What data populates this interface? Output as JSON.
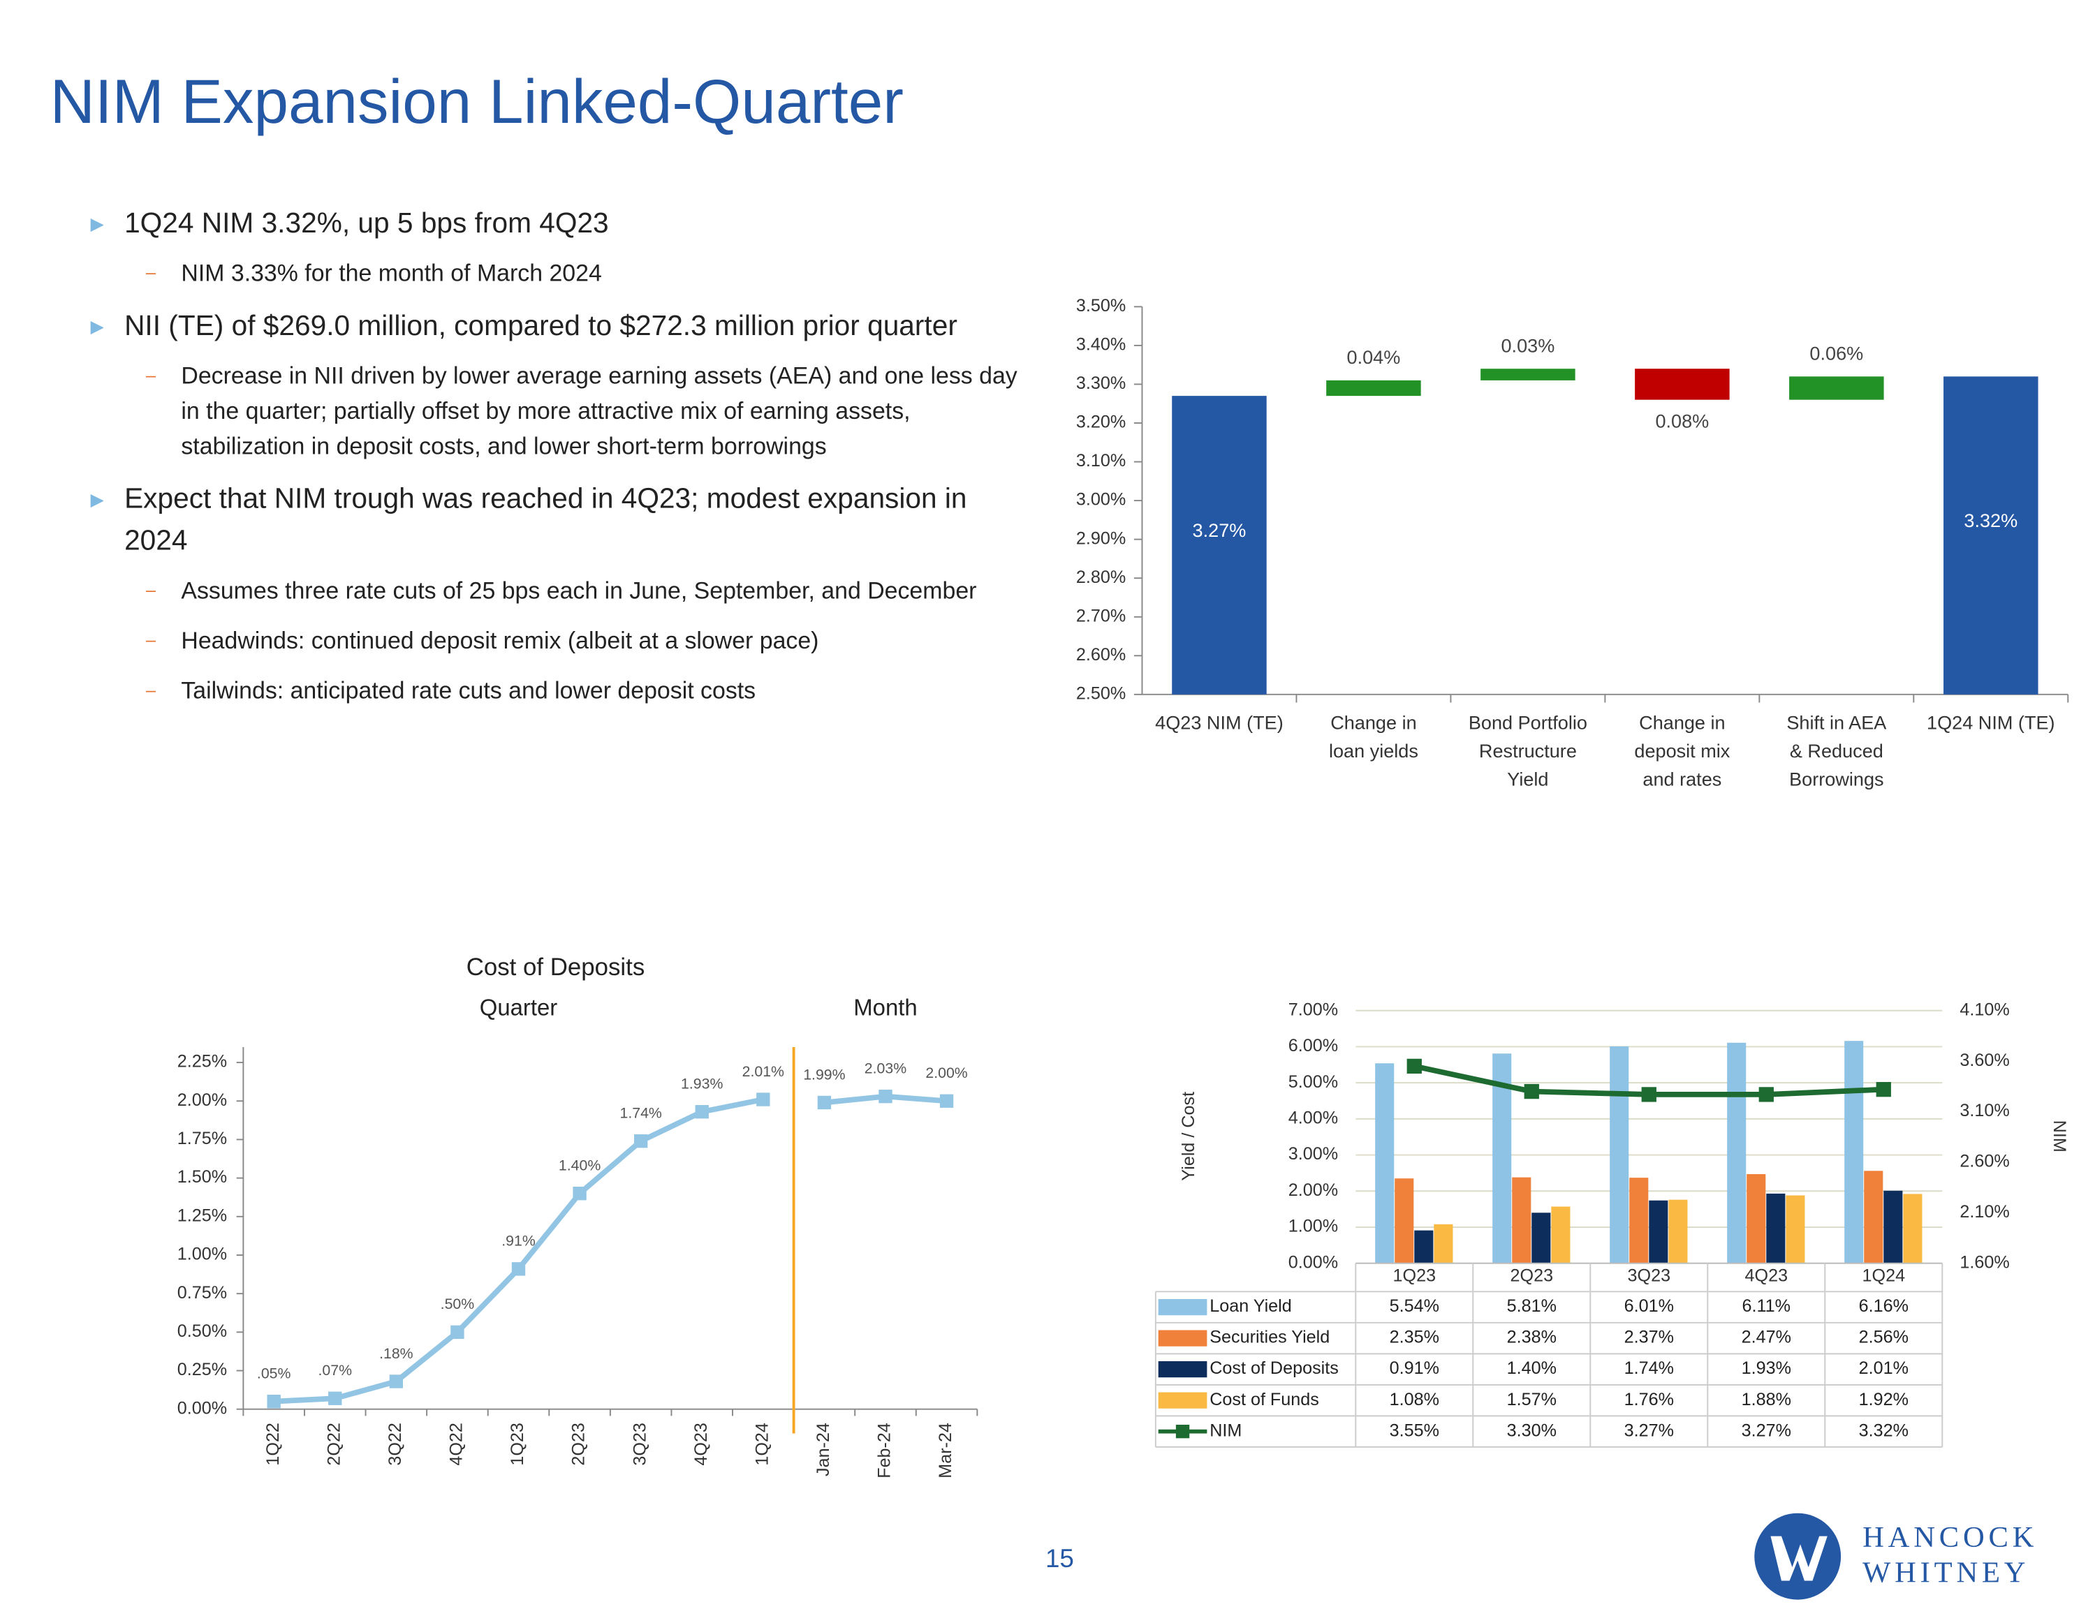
{
  "title": "NIM Expansion Linked-Quarter",
  "bullets": [
    {
      "text": "1Q24 NIM 3.32%, up 5 bps from 4Q23",
      "sub": [
        "NIM 3.33% for the month of March 2024"
      ]
    },
    {
      "text": "NII (TE) of $269.0 million, compared to $272.3 million prior quarter",
      "sub": [
        "Decrease in NII driven by lower average earning assets (AEA) and one less day in the quarter; partially offset by more attractive mix of earning assets, stabilization in deposit costs, and lower short-term borrowings"
      ]
    },
    {
      "text": "Expect that NIM trough was reached in 4Q23; modest expansion in 2024",
      "sub": [
        "Assumes three rate cuts of 25 bps each in June, September, and December",
        "Headwinds: continued deposit remix (albeit at a slower pace)",
        "Tailwinds: anticipated rate cuts and lower deposit costs"
      ]
    }
  ],
  "page_number": "15",
  "logo": [
    "HANCOCK",
    "WHITNEY"
  ],
  "chart_data": [
    {
      "type": "waterfall",
      "categories": [
        "4Q23 NIM (TE)",
        "Change in\nloan yields",
        "Bond Portfolio\nRestructure\nYield",
        "Change in\ndeposit mix\nand rates",
        "Shift in AEA\n& Reduced\nBorrowings",
        "1Q24 NIM (TE)"
      ],
      "values": [
        3.27,
        0.04,
        0.03,
        -0.08,
        0.06,
        3.32
      ],
      "value_labels": [
        "3.27%",
        "0.04%",
        "0.03%",
        "0.08%",
        "0.06%",
        "3.32%"
      ],
      "colors": [
        "#2457a4",
        "#229126",
        "#229126",
        "#c00000",
        "#229126",
        "#2457a4"
      ],
      "ylim": [
        2.5,
        3.5
      ],
      "yticks": [
        {
          "value": 2.5,
          "label": "2.50%"
        },
        {
          "value": 2.6,
          "label": "2.60%"
        },
        {
          "value": 2.7,
          "label": "2.70%"
        },
        {
          "value": 2.8,
          "label": "2.80%"
        },
        {
          "value": 2.9,
          "label": "2.90%"
        },
        {
          "value": 3.0,
          "label": "3.00%"
        },
        {
          "value": 3.1,
          "label": "3.10%"
        },
        {
          "value": 3.2,
          "label": "3.20%"
        },
        {
          "value": 3.3,
          "label": "3.30%"
        },
        {
          "value": 3.4,
          "label": "3.40%"
        },
        {
          "value": 3.5,
          "label": "3.50%"
        }
      ]
    },
    {
      "type": "line",
      "title": "Cost of Deposits",
      "categories": [
        "1Q22",
        "2Q22",
        "3Q22",
        "4Q22",
        "1Q23",
        "2Q23",
        "3Q23",
        "4Q23",
        "1Q24",
        "Jan-24",
        "Feb-24",
        "Mar-24"
      ],
      "series": [
        {
          "name": "Quarter",
          "color": "#92c5e4",
          "values": [
            0.05,
            0.07,
            0.18,
            0.5,
            0.91,
            1.4,
            1.74,
            1.93,
            2.01,
            null,
            null,
            null
          ],
          "value_labels": [
            ".05%",
            ".07%",
            ".18%",
            ".50%",
            ".91%",
            "1.40%",
            "1.74%",
            "1.93%",
            "2.01%",
            null,
            null,
            null
          ]
        },
        {
          "name": "Month",
          "color": "#92c5e4",
          "values": [
            null,
            null,
            null,
            null,
            null,
            null,
            null,
            null,
            null,
            1.99,
            2.03,
            2.0
          ],
          "value_labels": [
            null,
            null,
            null,
            null,
            null,
            null,
            null,
            null,
            null,
            "1.99%",
            "2.03%",
            "2.00%"
          ]
        }
      ],
      "ylim": [
        0,
        2.35
      ],
      "yticks": [
        {
          "value": 0,
          "label": "0.00%"
        },
        {
          "value": 0.25,
          "label": "0.25%"
        },
        {
          "value": 0.5,
          "label": "0.50%"
        },
        {
          "value": 0.75,
          "label": "0.75%"
        },
        {
          "value": 1.0,
          "label": "1.00%"
        },
        {
          "value": 1.25,
          "label": "1.25%"
        },
        {
          "value": 1.5,
          "label": "1.50%"
        },
        {
          "value": 1.75,
          "label": "1.75%"
        },
        {
          "value": 2.0,
          "label": "2.00%"
        },
        {
          "value": 2.25,
          "label": "2.25%"
        }
      ]
    },
    {
      "type": "bar_line",
      "y_label": "Yield / Cost",
      "y2_label": "NIM",
      "categories": [
        "1Q23",
        "2Q23",
        "3Q23",
        "4Q23",
        "1Q24"
      ],
      "series": [
        {
          "name": "Loan Yield",
          "color": "#8ec3e6",
          "values": [
            5.54,
            5.81,
            6.01,
            6.11,
            6.16
          ],
          "value_labels": [
            "5.54%",
            "5.81%",
            "6.01%",
            "6.11%",
            "6.16%"
          ]
        },
        {
          "name": "Securities Yield",
          "color": "#f0813a",
          "values": [
            2.35,
            2.38,
            2.37,
            2.47,
            2.56
          ],
          "value_labels": [
            "2.35%",
            "2.38%",
            "2.37%",
            "2.47%",
            "2.56%"
          ]
        },
        {
          "name": "Cost of Deposits",
          "color": "#0d2e5c",
          "values": [
            0.91,
            1.4,
            1.74,
            1.93,
            2.01
          ],
          "value_labels": [
            "0.91%",
            "1.40%",
            "1.74%",
            "1.93%",
            "2.01%"
          ]
        },
        {
          "name": "Cost of Funds",
          "color": "#f9b942",
          "values": [
            1.08,
            1.57,
            1.76,
            1.88,
            1.92
          ],
          "value_labels": [
            "1.08%",
            "1.57%",
            "1.76%",
            "1.88%",
            "1.92%"
          ]
        },
        {
          "name": "NIM",
          "color": "#1e6b32",
          "axis": "y2",
          "values": [
            3.55,
            3.3,
            3.27,
            3.27,
            3.32
          ],
          "value_labels": [
            "3.55%",
            "3.30%",
            "3.27%",
            "3.27%",
            "3.32%"
          ]
        }
      ],
      "ylim": [
        0,
        7
      ],
      "yticks": [
        {
          "value": 0,
          "label": "0.00%"
        },
        {
          "value": 1,
          "label": "1.00%"
        },
        {
          "value": 2,
          "label": "2.00%"
        },
        {
          "value": 3,
          "label": "3.00%"
        },
        {
          "value": 4,
          "label": "4.00%"
        },
        {
          "value": 5,
          "label": "5.00%"
        },
        {
          "value": 6,
          "label": "6.00%"
        },
        {
          "value": 7,
          "label": "7.00%"
        }
      ],
      "y2lim": [
        1.6,
        4.1
      ],
      "y2ticks": [
        {
          "value": 1.6,
          "label": "1.60%"
        },
        {
          "value": 2.1,
          "label": "2.10%"
        },
        {
          "value": 2.6,
          "label": "2.60%"
        },
        {
          "value": 3.1,
          "label": "3.10%"
        },
        {
          "value": 3.6,
          "label": "3.60%"
        },
        {
          "value": 4.1,
          "label": "4.10%"
        }
      ],
      "grid": true
    }
  ]
}
